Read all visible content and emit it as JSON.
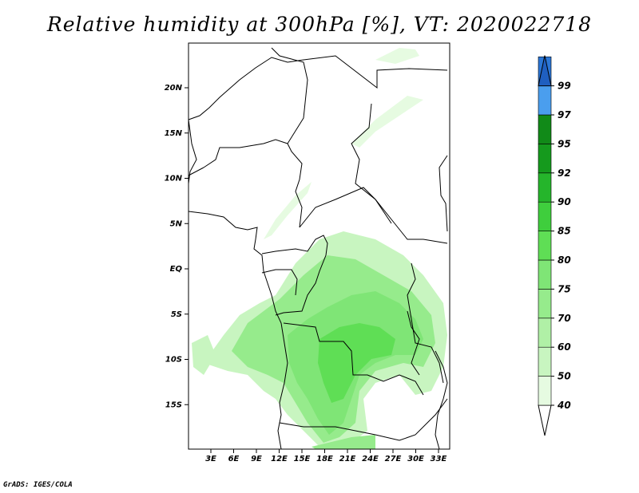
{
  "title": "Relative humidity at 300hPa [%], VT: 2020022718",
  "credit": "GrADS: IGES/COLA",
  "map": {
    "lat_ticks": [
      {
        "lat": 20,
        "label": "20N"
      },
      {
        "lat": 15,
        "label": "15N"
      },
      {
        "lat": 10,
        "label": "10N"
      },
      {
        "lat": 5,
        "label": "5N"
      },
      {
        "lat": 0,
        "label": "EQ"
      },
      {
        "lat": -5,
        "label": "5S"
      },
      {
        "lat": -10,
        "label": "10S"
      },
      {
        "lat": -15,
        "label": "15S"
      }
    ],
    "lon_ticks": [
      {
        "lon": 3,
        "label": "3E"
      },
      {
        "lon": 6,
        "label": "6E"
      },
      {
        "lon": 9,
        "label": "9E"
      },
      {
        "lon": 12,
        "label": "12E"
      },
      {
        "lon": 15,
        "label": "15E"
      },
      {
        "lon": 18,
        "label": "18E"
      },
      {
        "lon": 21,
        "label": "21E"
      },
      {
        "lon": 24,
        "label": "24E"
      },
      {
        "lon": 27,
        "label": "27E"
      },
      {
        "lon": 30,
        "label": "30E"
      },
      {
        "lon": 33,
        "label": "33E"
      }
    ]
  },
  "colorbar": {
    "levels": [
      {
        "label": "40",
        "color": "#e6fbe1"
      },
      {
        "label": "50",
        "color": "#c8f5c0"
      },
      {
        "label": "60",
        "color": "#b0f0a6"
      },
      {
        "label": "70",
        "color": "#96eb8c"
      },
      {
        "label": "75",
        "color": "#7fe576"
      },
      {
        "label": "80",
        "color": "#5fde55"
      },
      {
        "label": "85",
        "color": "#3fce3d"
      },
      {
        "label": "90",
        "color": "#25b52b"
      },
      {
        "label": "92",
        "color": "#159a1d"
      },
      {
        "label": "95",
        "color": "#118a18"
      },
      {
        "label": "97",
        "color": "#4a9eee"
      },
      {
        "label": "99",
        "color": "#2b76d6"
      }
    ],
    "top_arrow_color": "#1f5fc0",
    "bottom_arrow_color": "#ffffff"
  }
}
